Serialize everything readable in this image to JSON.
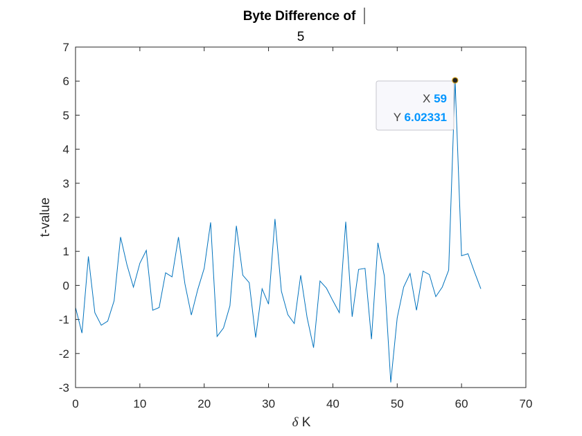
{
  "chart_data": {
    "type": "line",
    "title": "Byte Difference of",
    "subtitle": "5",
    "xlabel_symbol": "δ",
    "xlabel_text": " K",
    "ylabel": "t-value",
    "xlim": [
      0,
      70
    ],
    "ylim": [
      -3,
      7
    ],
    "xticks": [
      0,
      10,
      20,
      30,
      40,
      50,
      60,
      70
    ],
    "yticks": [
      -3,
      -2,
      -1,
      0,
      1,
      2,
      3,
      4,
      5,
      6,
      7
    ],
    "grid": false,
    "series": [
      {
        "color": "#0072BD",
        "x": [
          0,
          1,
          2,
          3,
          4,
          5,
          6,
          7,
          8,
          9,
          10,
          11,
          12,
          13,
          14,
          15,
          16,
          17,
          18,
          19,
          20,
          21,
          22,
          23,
          24,
          25,
          26,
          27,
          28,
          29,
          30,
          31,
          32,
          33,
          34,
          35,
          36,
          37,
          38,
          39,
          40,
          41,
          42,
          43,
          44,
          45,
          46,
          47,
          48,
          49,
          50,
          51,
          52,
          53,
          54,
          55,
          56,
          57,
          58,
          59,
          60,
          61,
          62,
          63
        ],
        "y": [
          -0.65,
          -1.4,
          0.85,
          -0.8,
          -1.17,
          -1.05,
          -0.45,
          1.42,
          0.6,
          -0.05,
          0.65,
          1.03,
          -0.73,
          -0.65,
          0.37,
          0.25,
          1.42,
          0.05,
          -0.87,
          -0.12,
          0.5,
          1.85,
          -1.5,
          -1.25,
          -0.6,
          1.75,
          0.3,
          0.08,
          -1.53,
          -0.1,
          -0.55,
          1.95,
          -0.17,
          -0.86,
          -1.12,
          0.3,
          -0.95,
          -1.83,
          0.13,
          -0.08,
          -0.45,
          -0.8,
          1.87,
          -0.92,
          0.47,
          0.5,
          -1.58,
          1.25,
          0.28,
          -2.85,
          -0.95,
          -0.05,
          0.35,
          -0.73,
          0.42,
          0.32,
          -0.33,
          -0.05,
          0.45,
          6.02331,
          0.87,
          0.93,
          0.4,
          -0.1
        ]
      }
    ],
    "datatip": {
      "x_key": "X",
      "x_value": "59",
      "y_key": "Y",
      "y_value": "6.02331",
      "value_color": "#0095FF"
    }
  }
}
